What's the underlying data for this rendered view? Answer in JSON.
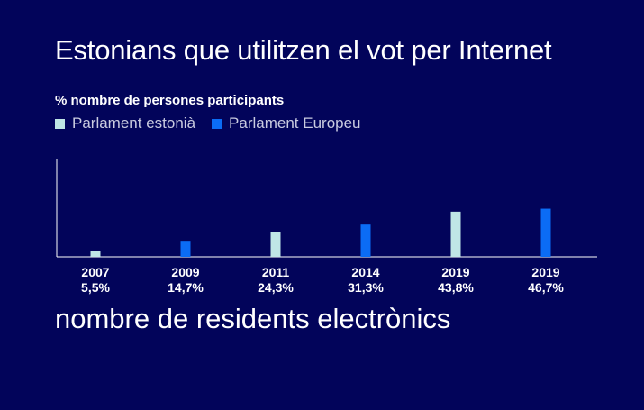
{
  "title": "Estonians que utilitzen el vot per Internet",
  "subtitle": "% nombre de persones participants",
  "footer_title": "nombre de residents electrònics",
  "colors": {
    "background": "#02045a",
    "estonian": "#bfe6e6",
    "european": "#0b6cf5",
    "axis": "#ffffff"
  },
  "chart_data": {
    "type": "bar",
    "title": "Estonians que utilitzen el vot per Internet",
    "ylabel": "% nombre de persones participants",
    "legend": [
      {
        "name": "Parlament estonià",
        "color": "#bfe6e6"
      },
      {
        "name": "Parlament Europeu",
        "color": "#0b6cf5"
      }
    ],
    "legend_position": "top-left",
    "categories": [
      "2007",
      "2009",
      "2011",
      "2014",
      "2019",
      "2019"
    ],
    "value_labels": [
      "5,5%",
      "14,7%",
      "24,3%",
      "31,3%",
      "43,8%",
      "46,7%"
    ],
    "values": [
      5.5,
      14.7,
      24.3,
      31.3,
      43.8,
      46.7
    ],
    "series_of_bar": [
      0,
      1,
      0,
      1,
      0,
      1
    ],
    "ylim": [
      0,
      100
    ],
    "grid": false
  }
}
